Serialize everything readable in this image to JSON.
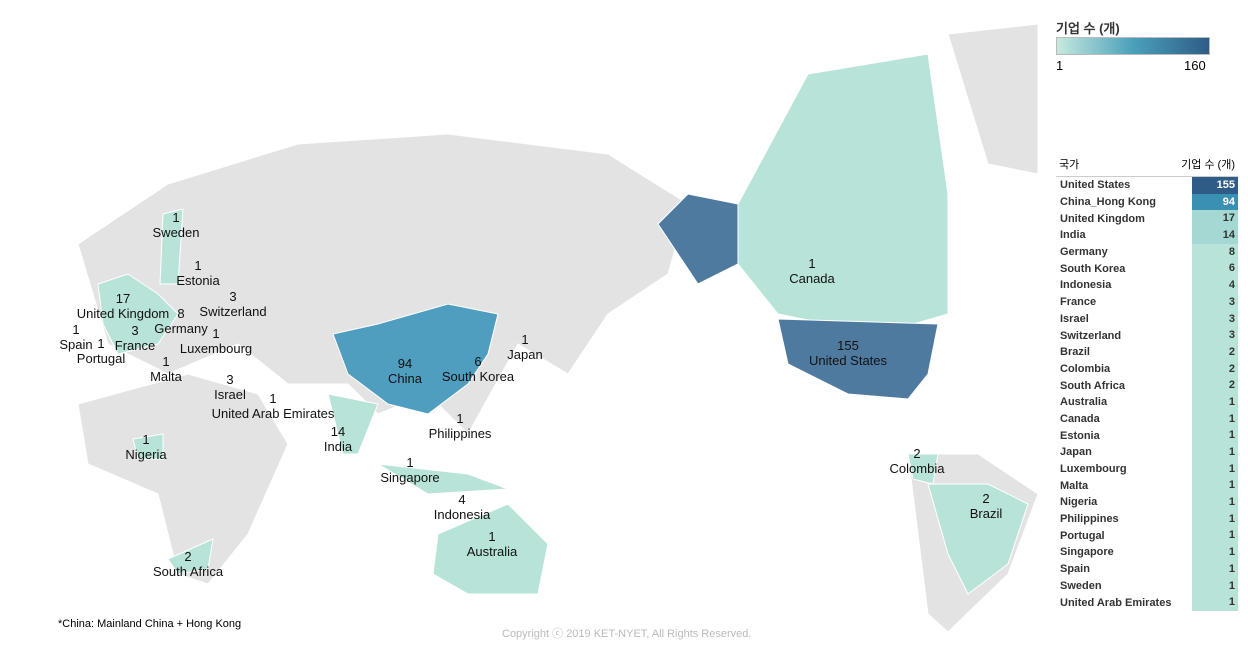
{
  "legend": {
    "title": "기업 수 (개)",
    "min": "1",
    "max": "160",
    "colors": [
      "#c6e9de",
      "#4aa0bb",
      "#2f5c87"
    ]
  },
  "table": {
    "header_country": "국가",
    "header_count": "기업 수 (개)",
    "rows": [
      [
        "United States",
        155
      ],
      [
        "China_Hong Kong",
        94
      ],
      [
        "United Kingdom",
        17
      ],
      [
        "India",
        14
      ],
      [
        "Germany",
        8
      ],
      [
        "South Korea",
        6
      ],
      [
        "Indonesia",
        4
      ],
      [
        "France",
        3
      ],
      [
        "Israel",
        3
      ],
      [
        "Switzerland",
        3
      ],
      [
        "Brazil",
        2
      ],
      [
        "Colombia",
        2
      ],
      [
        "South Africa",
        2
      ],
      [
        "Australia",
        1
      ],
      [
        "Canada",
        1
      ],
      [
        "Estonia",
        1
      ],
      [
        "Japan",
        1
      ],
      [
        "Luxembourg",
        1
      ],
      [
        "Malta",
        1
      ],
      [
        "Nigeria",
        1
      ],
      [
        "Philippines",
        1
      ],
      [
        "Portugal",
        1
      ],
      [
        "Singapore",
        1
      ],
      [
        "Spain",
        1
      ],
      [
        "Sweden",
        1
      ],
      [
        "United Arab Emirates",
        1
      ]
    ]
  },
  "map_labels": [
    {
      "name": "Sweden",
      "value": "1"
    },
    {
      "name": "Estonia",
      "value": "1"
    },
    {
      "name": "Switzerland",
      "value": "3"
    },
    {
      "name": "United Kingdom",
      "value": "17"
    },
    {
      "name": "Germany",
      "value": "8"
    },
    {
      "name": "France",
      "value": "3"
    },
    {
      "name": "Luxembourg",
      "value": "1"
    },
    {
      "name": "Spain",
      "value": "1"
    },
    {
      "name": "Portugal",
      "value": "1"
    },
    {
      "name": "Malta",
      "value": "1"
    },
    {
      "name": "Israel",
      "value": "3"
    },
    {
      "name": "United Arab Emirates",
      "value": "1"
    },
    {
      "name": "Nigeria",
      "value": "1"
    },
    {
      "name": "South Africa",
      "value": "2"
    },
    {
      "name": "China",
      "value": "94"
    },
    {
      "name": "South Korea",
      "value": "6"
    },
    {
      "name": "Japan",
      "value": "1"
    },
    {
      "name": "India",
      "value": "14"
    },
    {
      "name": "Philippines",
      "value": "1"
    },
    {
      "name": "Singapore",
      "value": "1"
    },
    {
      "name": "Indonesia",
      "value": "4"
    },
    {
      "name": "Australia",
      "value": "1"
    },
    {
      "name": "Canada",
      "value": "1"
    },
    {
      "name": "United States",
      "value": "155"
    },
    {
      "name": "Colombia",
      "value": "2"
    },
    {
      "name": "Brazil",
      "value": "2"
    }
  ],
  "note": "*China: Mainland China + Hong Kong",
  "copyright": "Copyright ⓒ 2019 KET-NYET, All Rights Reserved."
}
